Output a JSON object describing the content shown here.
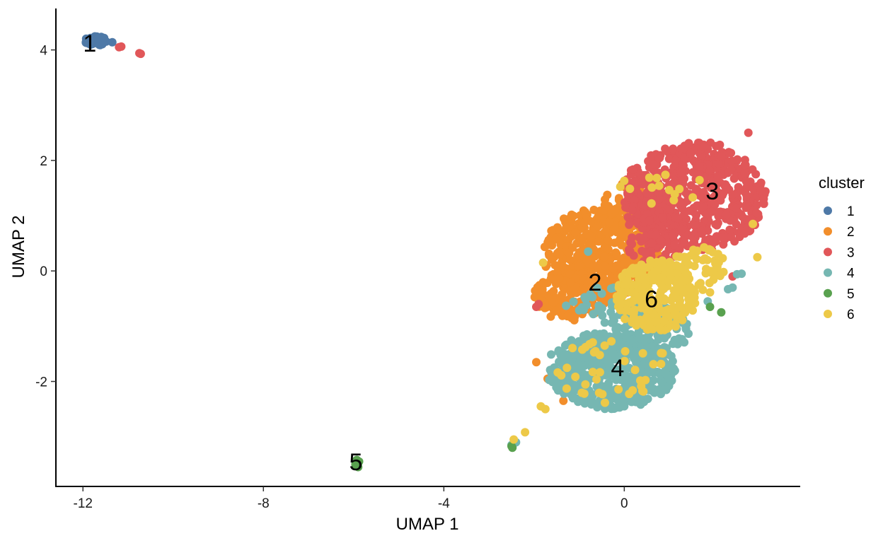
{
  "chart_data": {
    "type": "scatter",
    "title": "",
    "xlabel": "UMAP 1",
    "ylabel": "UMAP 2",
    "xlim": [
      -12.6,
      3.9
    ],
    "ylim": [
      -3.9,
      4.75
    ],
    "xticks": [
      -12,
      -8,
      -4,
      0
    ],
    "yticks": [
      4,
      2,
      0,
      -2
    ],
    "xtick_labels": [
      "-12",
      "-8",
      "-4",
      "0"
    ],
    "ytick_labels": [
      "4",
      "2",
      "0",
      "-2"
    ],
    "grid": false,
    "legend": {
      "title": "cluster",
      "placement": "right"
    },
    "series": [
      {
        "name": "1",
        "color": "#4E79A7",
        "regions": [
          {
            "cx": -11.7,
            "cy": 4.17,
            "rx": 0.25,
            "ry": 0.12,
            "n": 40
          }
        ],
        "points": [
          [
            -11.35,
            4.14
          ]
        ]
      },
      {
        "name": "2",
        "color": "#F28E2B",
        "regions": [
          {
            "cx": -0.5,
            "cy": 0.3,
            "rx": 1.3,
            "ry": 0.85,
            "n": 430
          },
          {
            "cx": -1.2,
            "cy": -0.45,
            "rx": 0.8,
            "ry": 0.45,
            "n": 140
          },
          {
            "cx": 0.15,
            "cy": 1.15,
            "rx": 0.6,
            "ry": 0.55,
            "n": 70
          }
        ],
        "points": [
          [
            -1.95,
            -1.65
          ],
          [
            -1.7,
            -1.95
          ],
          [
            -1.35,
            -2.35
          ]
        ]
      },
      {
        "name": "3",
        "color": "#E15759",
        "regions": [
          {
            "cx": 1.55,
            "cy": 1.35,
            "rx": 1.6,
            "ry": 1.0,
            "n": 540
          },
          {
            "cx": 0.7,
            "cy": 0.6,
            "rx": 0.7,
            "ry": 0.5,
            "n": 90
          },
          {
            "cx": 0.5,
            "cy": 1.3,
            "rx": 0.5,
            "ry": 0.4,
            "n": 50
          }
        ],
        "points": [
          [
            -11.2,
            4.05
          ],
          [
            -11.15,
            4.06
          ],
          [
            -10.75,
            3.94
          ],
          [
            -10.72,
            3.93
          ],
          [
            -1.9,
            -0.6
          ],
          [
            -1.95,
            -0.65
          ],
          [
            1.4,
            -0.3
          ],
          [
            2.4,
            -0.1
          ],
          [
            1.3,
            -0.05
          ],
          [
            2.75,
            2.5
          ]
        ]
      },
      {
        "name": "4",
        "color": "#76B7B2",
        "regions": [
          {
            "cx": -0.3,
            "cy": -1.8,
            "rx": 1.45,
            "ry": 0.7,
            "n": 520
          },
          {
            "cx": 0.55,
            "cy": -1.1,
            "rx": 0.9,
            "ry": 0.5,
            "n": 110
          },
          {
            "cx": -0.3,
            "cy": -0.6,
            "rx": 1.0,
            "ry": 0.35,
            "n": 40
          }
        ],
        "points": [
          [
            -2.45,
            -3.12
          ],
          [
            -2.5,
            -3.15
          ],
          [
            -2.48,
            -3.18
          ],
          [
            -2.4,
            -3.1
          ],
          [
            2.4,
            -0.3
          ],
          [
            2.3,
            -0.33
          ],
          [
            2.6,
            -0.05
          ],
          [
            2.5,
            -0.06
          ],
          [
            1.85,
            -0.55
          ],
          [
            -0.8,
            0.35
          ]
        ]
      },
      {
        "name": "5",
        "color": "#59A14F",
        "regions": [],
        "points": [
          [
            -5.93,
            -3.42
          ],
          [
            -5.9,
            -3.48
          ],
          [
            -5.96,
            -3.5
          ],
          [
            -5.88,
            -3.45
          ],
          [
            -5.92,
            -3.52
          ],
          [
            -5.95,
            -3.46
          ],
          [
            -5.9,
            -3.55
          ],
          [
            -2.5,
            -3.17
          ],
          [
            -2.48,
            -3.2
          ],
          [
            1.9,
            -0.65
          ],
          [
            2.15,
            -0.75
          ]
        ]
      },
      {
        "name": "6",
        "color": "#EDC948",
        "regions": [
          {
            "cx": 0.7,
            "cy": -0.45,
            "rx": 0.9,
            "ry": 0.65,
            "n": 260
          },
          {
            "cx": 1.6,
            "cy": 0.0,
            "rx": 0.7,
            "ry": 0.45,
            "n": 60
          },
          {
            "cx": -0.2,
            "cy": -1.8,
            "rx": 1.3,
            "ry": 0.6,
            "n": 40
          },
          {
            "cx": 0.8,
            "cy": 1.5,
            "rx": 1.0,
            "ry": 0.3,
            "n": 15
          }
        ],
        "points": [
          [
            -2.2,
            -2.92
          ],
          [
            -2.45,
            -3.05
          ],
          [
            -1.85,
            -2.45
          ],
          [
            -1.75,
            -2.5
          ],
          [
            2.85,
            0.85
          ],
          [
            2.95,
            0.25
          ],
          [
            -1.8,
            0.15
          ]
        ]
      }
    ],
    "cluster_labels": [
      {
        "text": "1",
        "x": -11.85,
        "y": 4.12
      },
      {
        "text": "2",
        "x": -0.65,
        "y": -0.2
      },
      {
        "text": "3",
        "x": 1.95,
        "y": 1.45
      },
      {
        "text": "4",
        "x": -0.15,
        "y": -1.75
      },
      {
        "text": "5",
        "x": -5.95,
        "y": -3.45
      },
      {
        "text": "6",
        "x": 0.6,
        "y": -0.5
      }
    ]
  }
}
